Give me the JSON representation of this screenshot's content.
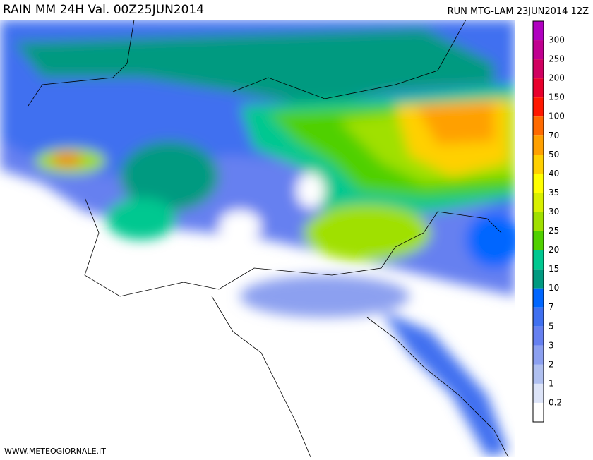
{
  "header": {
    "title": "RAIN MM 24H Val. 00Z25JUN2014",
    "run": "RUN MTG-LAM 23JUN2014 12Z"
  },
  "legend": {
    "labels": [
      300,
      250,
      200,
      150,
      100,
      70,
      50,
      40,
      35,
      30,
      25,
      20,
      15,
      10,
      7,
      5,
      3,
      2,
      1,
      0.2
    ],
    "colors": [
      "#b000c0",
      "#c00090",
      "#d00060",
      "#e8002c",
      "#ff1800",
      "#ff6a00",
      "#ffa000",
      "#ffd000",
      "#ffff00",
      "#d8f000",
      "#a0e000",
      "#50d000",
      "#00c890",
      "#009a80",
      "#0066ff",
      "#4070f0",
      "#6680f0",
      "#8ca0f0",
      "#b0c0f0",
      "#dde4f8",
      "#ffffff"
    ]
  },
  "footer": {
    "credit": "WWW.METEOGIORNALE.IT"
  }
}
